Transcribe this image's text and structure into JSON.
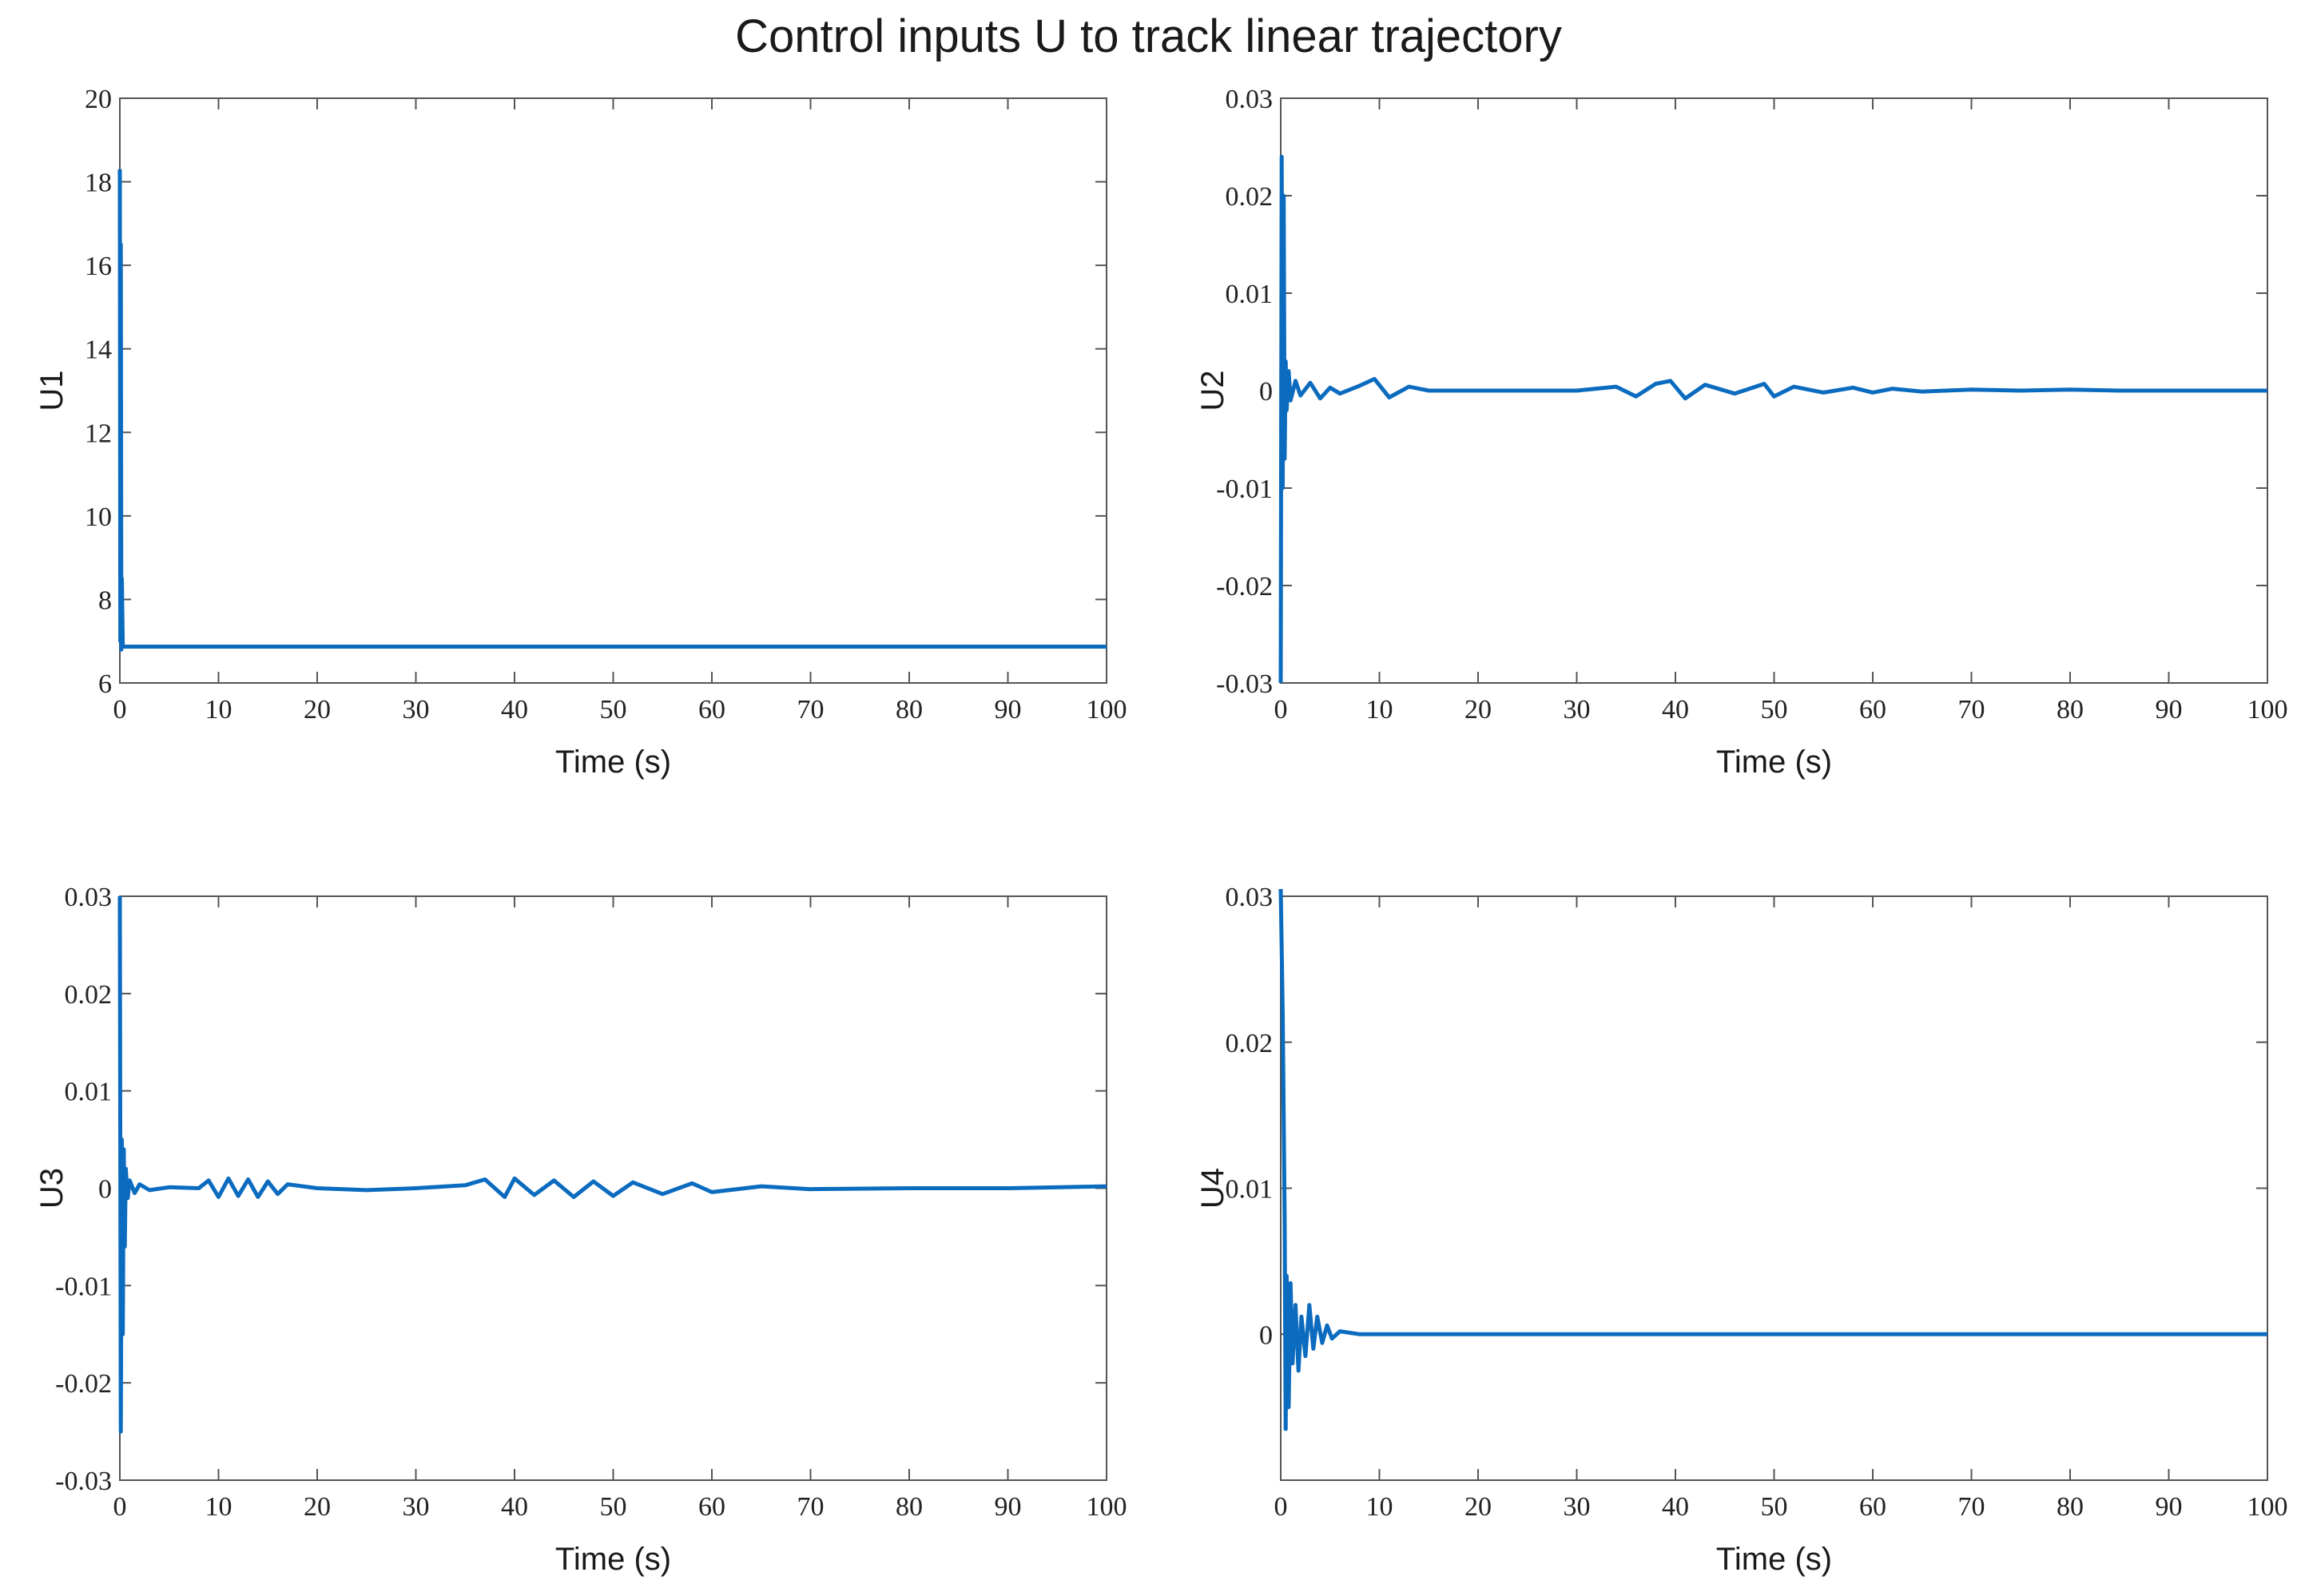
{
  "title": "Control inputs U to track linear trajectory",
  "colors": {
    "series": "#0b6bbf",
    "axes": "#555555",
    "background": "#ffffff"
  },
  "chart_data": [
    {
      "type": "line",
      "ylabel": "U1",
      "xlabel": "Time (s)",
      "xlim": [
        0,
        100
      ],
      "ylim": [
        6,
        20
      ],
      "xticks": [
        0,
        10,
        20,
        30,
        40,
        50,
        60,
        70,
        80,
        90,
        100
      ],
      "yticks": [
        6,
        8,
        10,
        12,
        14,
        16,
        18,
        20
      ],
      "ytick_labels": [
        "6",
        "8",
        "10",
        "12",
        "14",
        "16",
        "18",
        "20"
      ],
      "grid": false,
      "series": [
        {
          "x": [
            0,
            0.05,
            0.1,
            0.15,
            0.2,
            0.3,
            1,
            5,
            10,
            20,
            30,
            40,
            50,
            60,
            70,
            80,
            90,
            100
          ],
          "y": [
            18.3,
            7.0,
            16.5,
            6.8,
            8.5,
            6.87,
            6.87,
            6.87,
            6.87,
            6.87,
            6.87,
            6.87,
            6.87,
            6.87,
            6.87,
            6.87,
            6.87,
            6.87
          ]
        }
      ]
    },
    {
      "type": "line",
      "ylabel": "U2",
      "xlabel": "Time (s)",
      "xlim": [
        0,
        100
      ],
      "ylim": [
        -0.03,
        0.03
      ],
      "xticks": [
        0,
        10,
        20,
        30,
        40,
        50,
        60,
        70,
        80,
        90,
        100
      ],
      "yticks": [
        -0.03,
        -0.02,
        -0.01,
        0,
        0.01,
        0.02,
        0.03
      ],
      "ytick_labels": [
        "-0.03",
        "-0.02",
        "-0.01",
        "0",
        "0.01",
        "0.02",
        "0.03"
      ],
      "grid": false,
      "series": [
        {
          "x": [
            0,
            0.1,
            0.2,
            0.3,
            0.4,
            0.5,
            0.6,
            0.8,
            1,
            1.5,
            2,
            3,
            4,
            5,
            6,
            8,
            9.5,
            11,
            13,
            15,
            20,
            25,
            30,
            34,
            36,
            38,
            39.5,
            41,
            43,
            46,
            49,
            50,
            52,
            55,
            58,
            60,
            62,
            65,
            70,
            75,
            80,
            85,
            90,
            95,
            100
          ],
          "y": [
            -0.03,
            0.024,
            -0.01,
            0.02,
            -0.007,
            0.003,
            -0.002,
            0.002,
            -0.001,
            0.001,
            -0.0005,
            0.0008,
            -0.0008,
            0.0003,
            -0.0003,
            0.0005,
            0.0012,
            -0.0007,
            0.0004,
            0.0,
            0.0,
            0.0,
            0.0,
            0.0004,
            -0.0006,
            0.0007,
            0.001,
            -0.0008,
            0.0006,
            -0.0003,
            0.0007,
            -0.0006,
            0.0004,
            -0.0002,
            0.0003,
            -0.0002,
            0.0002,
            -0.0001,
            0.0001,
            0.0,
            0.0001,
            0.0,
            0.0,
            0.0,
            0.0
          ]
        }
      ]
    },
    {
      "type": "line",
      "ylabel": "U3",
      "xlabel": "Time (s)",
      "xlim": [
        0,
        100
      ],
      "ylim": [
        -0.03,
        0.03
      ],
      "xticks": [
        0,
        10,
        20,
        30,
        40,
        50,
        60,
        70,
        80,
        90,
        100
      ],
      "yticks": [
        -0.03,
        -0.02,
        -0.01,
        0,
        0.01,
        0.02,
        0.03
      ],
      "ytick_labels": [
        "-0.03",
        "-0.02",
        "-0.01",
        "0",
        "0.01",
        "0.02",
        "0.03"
      ],
      "grid": false,
      "series": [
        {
          "x": [
            0,
            0.1,
            0.2,
            0.3,
            0.4,
            0.5,
            0.6,
            0.8,
            1,
            1.5,
            2,
            3,
            5,
            8,
            9,
            10,
            11,
            12,
            13,
            14,
            15,
            16,
            17,
            20,
            25,
            30,
            35,
            37,
            39,
            40,
            42,
            44,
            46,
            48,
            50,
            52,
            55,
            58,
            60,
            65,
            70,
            80,
            90,
            100
          ],
          "y": [
            0.03,
            -0.025,
            0.005,
            -0.015,
            0.004,
            -0.006,
            0.002,
            -0.001,
            0.0008,
            -0.0005,
            0.0004,
            -0.0002,
            0.0001,
            0.0,
            0.0008,
            -0.0009,
            0.001,
            -0.0008,
            0.0009,
            -0.0009,
            0.0007,
            -0.0006,
            0.0004,
            0.0,
            -0.0002,
            0.0,
            0.0003,
            0.0009,
            -0.0009,
            0.001,
            -0.0007,
            0.0008,
            -0.0009,
            0.0007,
            -0.0008,
            0.0006,
            -0.0006,
            0.0005,
            -0.0004,
            0.0002,
            -0.0001,
            0.0,
            0.0,
            0.0002
          ]
        }
      ]
    },
    {
      "type": "line",
      "ylabel": "U4",
      "xlabel": "Time (s)",
      "xlim": [
        0,
        100
      ],
      "ylim": [
        -0.01,
        0.03
      ],
      "xticks": [
        0,
        10,
        20,
        30,
        40,
        50,
        60,
        70,
        80,
        90,
        100
      ],
      "yticks": [
        0,
        0.01,
        0.02,
        0.03
      ],
      "ytick_labels": [
        "0",
        "0.01",
        "0.02",
        "0.03"
      ],
      "grid": false,
      "series": [
        {
          "x": [
            0,
            0.2,
            0.4,
            0.5,
            0.6,
            0.8,
            1.0,
            1.2,
            1.5,
            1.8,
            2.1,
            2.5,
            2.9,
            3.3,
            3.7,
            4.2,
            4.7,
            5.2,
            6,
            8,
            10,
            15,
            20,
            30,
            40,
            50,
            60,
            70,
            80,
            90,
            100
          ],
          "y": [
            0.0305,
            0.022,
            0.008,
            -0.0065,
            0.004,
            -0.005,
            0.0035,
            -0.002,
            0.002,
            -0.0025,
            0.0012,
            -0.0015,
            0.002,
            -0.001,
            0.0012,
            -0.0006,
            0.0006,
            -0.0003,
            0.0002,
            0.0,
            0.0,
            0.0,
            0.0,
            0.0,
            0.0,
            0.0,
            0.0,
            0.0,
            0.0,
            0.0,
            0.0
          ]
        }
      ]
    }
  ]
}
